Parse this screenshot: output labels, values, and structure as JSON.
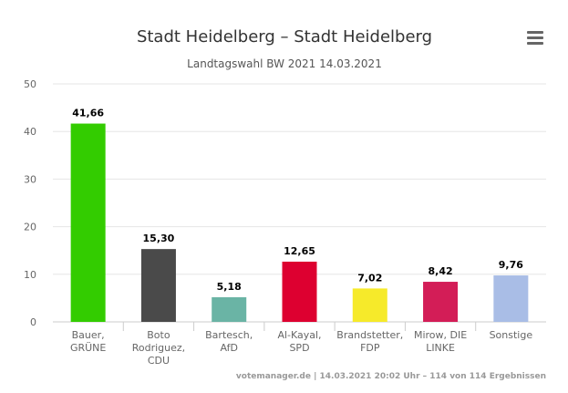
{
  "chart_data": {
    "type": "bar",
    "title": "Stadt Heidelberg – Stadt Heidelberg",
    "subtitle": "Landtagswahl BW 2021 14.03.2021",
    "categories": [
      [
        "Bauer,",
        "GRÜNE"
      ],
      [
        "Boto",
        "Rodriguez,",
        "CDU"
      ],
      [
        "Bartesch,",
        "AfD"
      ],
      [
        "Al-Kayal,",
        "SPD"
      ],
      [
        "Brandstetter,",
        "FDP"
      ],
      [
        "Mirow, DIE",
        "LINKE"
      ],
      [
        "Sonstige"
      ]
    ],
    "values": [
      41.66,
      15.3,
      5.18,
      12.65,
      7.02,
      8.42,
      9.76
    ],
    "data_labels": [
      "41,66",
      "15,30",
      "5,18",
      "12,65",
      "7,02",
      "8,42",
      "9,76"
    ],
    "colors": [
      "#33cc00",
      "#4a4a4a",
      "#6ab4a5",
      "#dd0030",
      "#f6ea2a",
      "#d31d57",
      "#a9bde6"
    ],
    "y_ticks": [
      0,
      10,
      20,
      30,
      40,
      50
    ],
    "ylim": [
      0,
      50
    ],
    "xlabel": "",
    "ylabel": "",
    "grid": true,
    "credits": "votemanager.de | 14.03.2021 20:02 Uhr – 114 von 114 Ergebnissen"
  },
  "menu": {
    "icon": "hamburger-menu-icon"
  }
}
